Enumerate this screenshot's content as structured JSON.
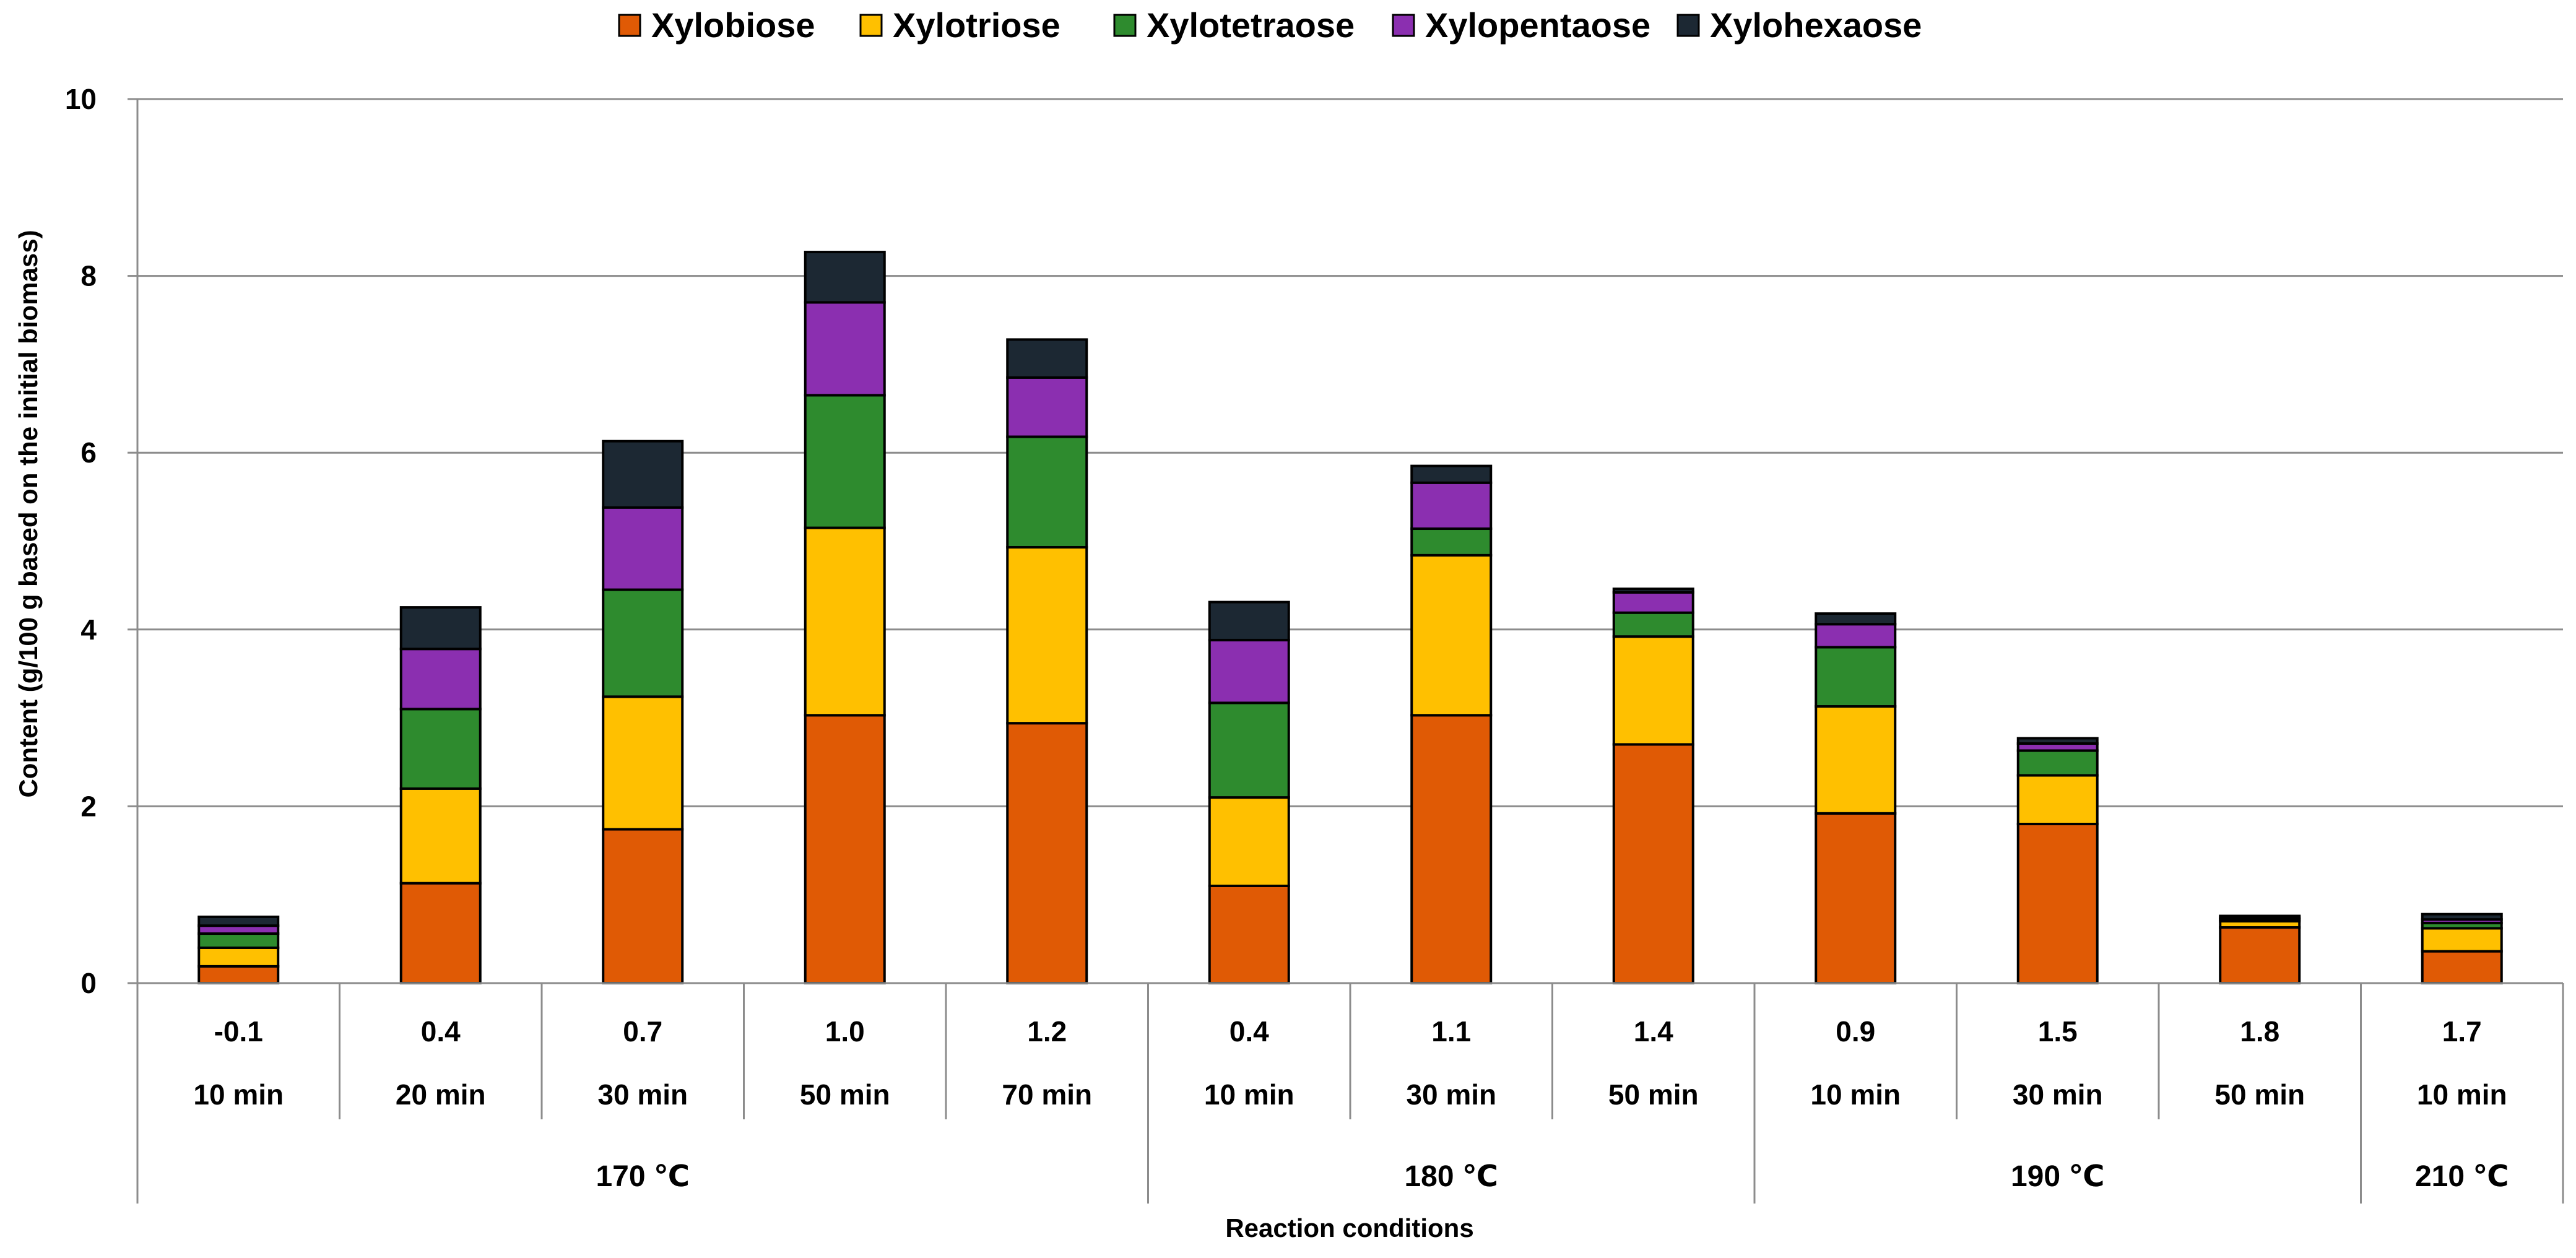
{
  "chart_data": {
    "type": "bar",
    "stacked": true,
    "xlabel": "Reaction conditions",
    "ylabel": "Content (g/100 g based on the initial biomass)",
    "ylim": [
      0,
      10
    ],
    "yticks": [
      0,
      2,
      4,
      6,
      8,
      10
    ],
    "grid": "horizontal",
    "legend_position": "top",
    "categories": [
      {
        "severity": "-0.1",
        "time": "10 min",
        "temperature": "170 ℃"
      },
      {
        "severity": "0.4",
        "time": "20 min",
        "temperature": "170 ℃"
      },
      {
        "severity": "0.7",
        "time": "30 min",
        "temperature": "170 ℃"
      },
      {
        "severity": "1.0",
        "time": "50 min",
        "temperature": "170 ℃"
      },
      {
        "severity": "1.2",
        "time": "70 min",
        "temperature": "170 ℃"
      },
      {
        "severity": "0.4",
        "time": "10 min",
        "temperature": "180 ℃"
      },
      {
        "severity": "1.1",
        "time": "30 min",
        "temperature": "180 ℃"
      },
      {
        "severity": "1.4",
        "time": "50 min",
        "temperature": "180 ℃"
      },
      {
        "severity": "0.9",
        "time": "10 min",
        "temperature": "190 ℃"
      },
      {
        "severity": "1.5",
        "time": "30 min",
        "temperature": "190 ℃"
      },
      {
        "severity": "1.8",
        "time": "50 min",
        "temperature": "190 ℃"
      },
      {
        "severity": "1.7",
        "time": "10 min",
        "temperature": "210 ℃"
      }
    ],
    "groups": [
      {
        "label": "170 ℃",
        "count": 5
      },
      {
        "label": "180 ℃",
        "count": 3
      },
      {
        "label": "190 ℃",
        "count": 3
      },
      {
        "label": "210 ℃",
        "count": 1
      }
    ],
    "series": [
      {
        "name": "Xylobiose",
        "color": "#E05A05",
        "values": [
          0.19,
          1.13,
          1.74,
          3.03,
          2.94,
          1.1,
          3.03,
          2.7,
          1.92,
          1.8,
          0.63,
          0.36
        ]
      },
      {
        "name": "Xylotriose",
        "color": "#FFC000",
        "values": [
          0.21,
          1.07,
          1.5,
          2.12,
          1.99,
          1.0,
          1.81,
          1.22,
          1.21,
          0.55,
          0.07,
          0.26
        ]
      },
      {
        "name": "Xylotetraose",
        "color": "#2E8B2E",
        "values": [
          0.16,
          0.9,
          1.21,
          1.5,
          1.25,
          1.07,
          0.3,
          0.27,
          0.67,
          0.28,
          0.02,
          0.06
        ]
      },
      {
        "name": "Xylopentaose",
        "color": "#8B2FB0",
        "values": [
          0.09,
          0.68,
          0.93,
          1.05,
          0.67,
          0.71,
          0.52,
          0.23,
          0.26,
          0.08,
          0.02,
          0.04
        ]
      },
      {
        "name": "Xylohexaose",
        "color": "#1C2833",
        "values": [
          0.1,
          0.47,
          0.75,
          0.57,
          0.43,
          0.43,
          0.19,
          0.04,
          0.12,
          0.06,
          0.02,
          0.06
        ]
      }
    ]
  }
}
